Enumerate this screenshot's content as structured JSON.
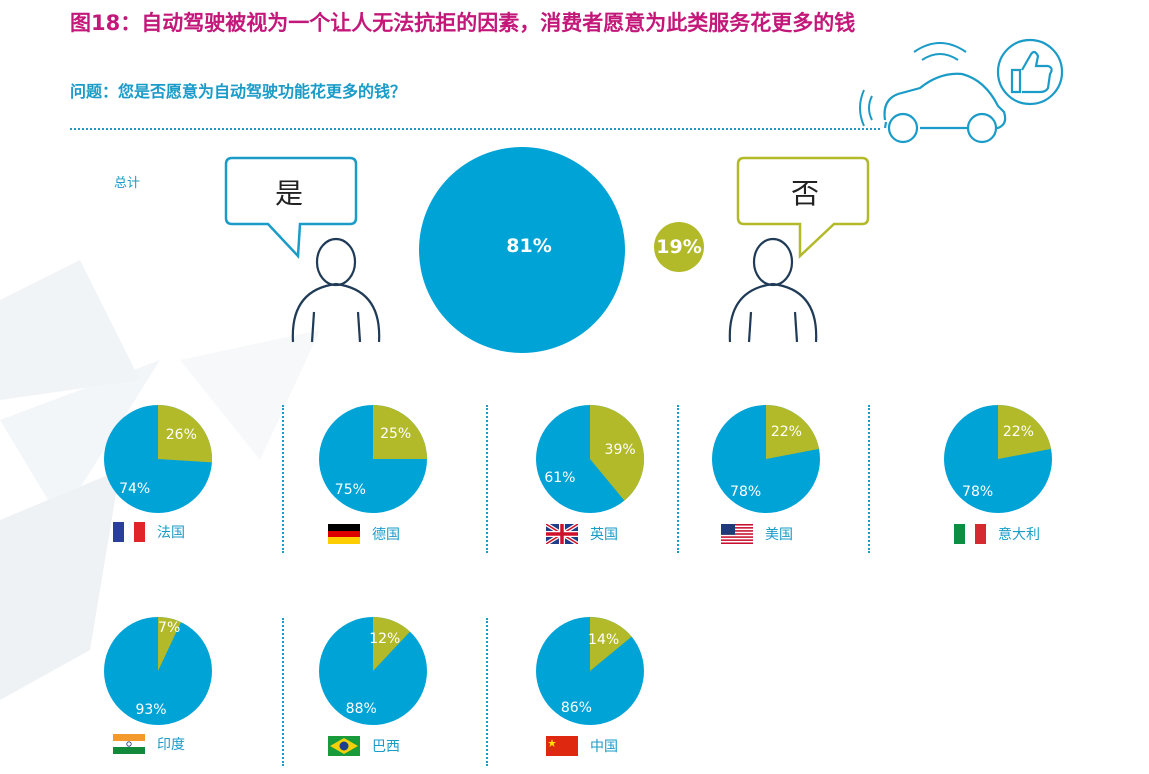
{
  "header": {
    "title": "图18：自动驾驶被视为一个让人无法抗拒的因素，消费者愿意为此类服务花更多的钱",
    "question": "问题：您是否愿意为自动驾驶功能花更多的钱？"
  },
  "total": {
    "label": "总计",
    "yes_bubble": "是",
    "no_bubble": "否"
  },
  "colors": {
    "yes": "#00a3d6",
    "no": "#b2ba29",
    "title": "#c3187a",
    "accent": "#1b9bc7"
  },
  "icons": [
    "person-yes-icon",
    "person-no-icon",
    "car-icon",
    "wifi-signal-icon",
    "thumbs-up-icon"
  ],
  "chart_data": [
    {
      "type": "pie",
      "label": "总计",
      "categories": [
        "是",
        "否"
      ],
      "values": [
        81,
        19
      ],
      "labels": [
        "81%",
        "19%"
      ]
    },
    {
      "type": "pie",
      "countries": [
        {
          "name": "法国",
          "flag": "france-flag-icon",
          "yes": 74,
          "no": 26,
          "yes_label": "74%",
          "no_label": "26%"
        },
        {
          "name": "德国",
          "flag": "germany-flag-icon",
          "yes": 75,
          "no": 25,
          "yes_label": "75%",
          "no_label": "25%"
        },
        {
          "name": "英国",
          "flag": "uk-flag-icon",
          "yes": 61,
          "no": 39,
          "yes_label": "61%",
          "no_label": "39%"
        },
        {
          "name": "美国",
          "flag": "usa-flag-icon",
          "yes": 78,
          "no": 22,
          "yes_label": "78%",
          "no_label": "22%"
        },
        {
          "name": "意大利",
          "flag": "italy-flag-icon",
          "yes": 78,
          "no": 22,
          "yes_label": "78%",
          "no_label": "22%"
        },
        {
          "name": "印度",
          "flag": "india-flag-icon",
          "yes": 93,
          "no": 7,
          "yes_label": "93%",
          "no_label": "7%"
        },
        {
          "name": "巴西",
          "flag": "brazil-flag-icon",
          "yes": 88,
          "no": 12,
          "yes_label": "88%",
          "no_label": "12%"
        },
        {
          "name": "中国",
          "flag": "china-flag-icon",
          "yes": 86,
          "no": 14,
          "yes_label": "86%",
          "no_label": "14%"
        }
      ]
    }
  ]
}
